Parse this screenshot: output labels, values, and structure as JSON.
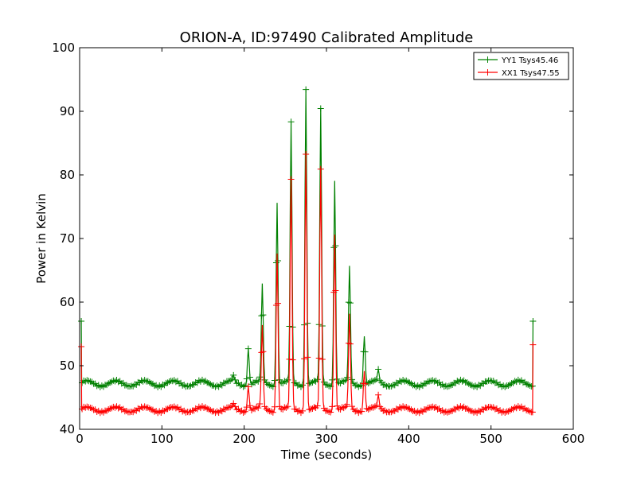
{
  "chart_data": {
    "type": "line",
    "title": "ORION-A, ID:97490 Calibrated Amplitude",
    "xlabel": "Time (seconds)",
    "ylabel": "Power in Kelvin",
    "xlim": [
      0,
      600
    ],
    "ylim": [
      40,
      100
    ],
    "xticks": [
      0,
      100,
      200,
      300,
      400,
      500,
      600
    ],
    "yticks": [
      40,
      50,
      60,
      70,
      80,
      90,
      100
    ],
    "grid": false,
    "legend_position": "top-right",
    "markers": "plus",
    "series": [
      {
        "name": "YY1 Tsys45.46",
        "color": "#008000",
        "baseline": 47.2,
        "ripple": 0.45,
        "start_value": 57.0,
        "end_value": 57.0,
        "x_range": [
          2,
          551
        ],
        "peaks": [
          {
            "x": 187,
            "y": 48.2
          },
          {
            "x": 205,
            "y": 53
          },
          {
            "x": 222,
            "y": 62.5
          },
          {
            "x": 240,
            "y": 76
          },
          {
            "x": 257,
            "y": 88
          },
          {
            "x": 275,
            "y": 93.7
          },
          {
            "x": 293,
            "y": 90
          },
          {
            "x": 310,
            "y": 79.5
          },
          {
            "x": 328,
            "y": 65.5
          },
          {
            "x": 346,
            "y": 55
          },
          {
            "x": 363,
            "y": 49
          }
        ]
      },
      {
        "name": "XX1 Tsys47.55",
        "color": "#ff0000",
        "baseline": 43.1,
        "ripple": 0.4,
        "start_value": 53.0,
        "end_value": 53.3,
        "x_range": [
          2,
          551
        ],
        "peaks": [
          {
            "x": 187,
            "y": 43.8
          },
          {
            "x": 205,
            "y": 47
          },
          {
            "x": 222,
            "y": 56
          },
          {
            "x": 240,
            "y": 68
          },
          {
            "x": 257,
            "y": 79
          },
          {
            "x": 275,
            "y": 83.5
          },
          {
            "x": 293,
            "y": 80.5
          },
          {
            "x": 310,
            "y": 71
          },
          {
            "x": 328,
            "y": 58
          },
          {
            "x": 346,
            "y": 49.5
          },
          {
            "x": 363,
            "y": 45
          }
        ]
      }
    ]
  }
}
